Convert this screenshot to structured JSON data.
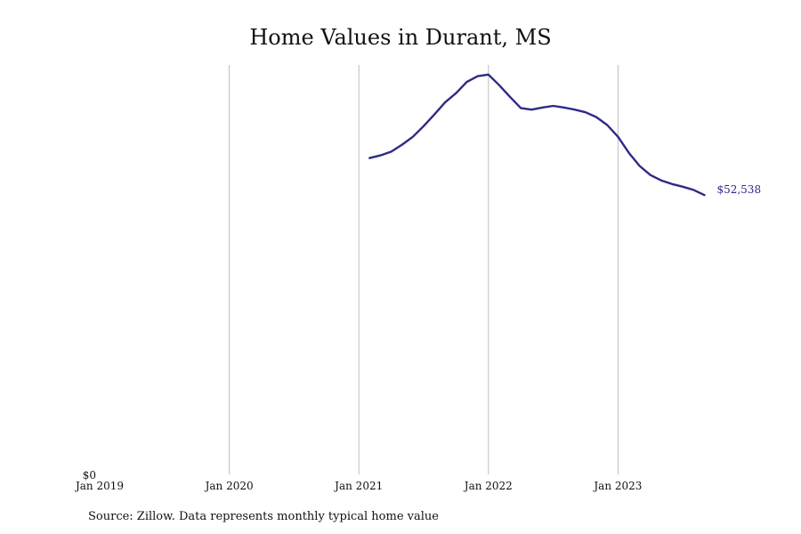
{
  "chart_data": {
    "type": "line",
    "title": "Home Values in Durant, MS",
    "xlabel": "",
    "ylabel": "",
    "x_ticks": [
      "Jan 2019",
      "Jan 2020",
      "Jan 2021",
      "Jan 2022",
      "Jan 2023"
    ],
    "y_ticks": [
      "$0"
    ],
    "ylim": [
      0,
      100000
    ],
    "grid": "vertical",
    "series": [
      {
        "color": "#2e2a86",
        "points": [
          {
            "x": "2021-02",
            "y": 59500
          },
          {
            "x": "2021-03",
            "y": 60000
          },
          {
            "x": "2021-04",
            "y": 60700
          },
          {
            "x": "2021-05",
            "y": 62000
          },
          {
            "x": "2021-06",
            "y": 63500
          },
          {
            "x": "2021-07",
            "y": 65500
          },
          {
            "x": "2021-08",
            "y": 67700
          },
          {
            "x": "2021-09",
            "y": 70000
          },
          {
            "x": "2021-10",
            "y": 71700
          },
          {
            "x": "2021-11",
            "y": 73800
          },
          {
            "x": "2021-12",
            "y": 74900
          },
          {
            "x": "2022-01",
            "y": 75200
          },
          {
            "x": "2022-02",
            "y": 73200
          },
          {
            "x": "2022-03",
            "y": 71000
          },
          {
            "x": "2022-04",
            "y": 68900
          },
          {
            "x": "2022-05",
            "y": 68600
          },
          {
            "x": "2022-06",
            "y": 69000
          },
          {
            "x": "2022-07",
            "y": 69300
          },
          {
            "x": "2022-08",
            "y": 69000
          },
          {
            "x": "2022-09",
            "y": 68600
          },
          {
            "x": "2022-10",
            "y": 68100
          },
          {
            "x": "2022-11",
            "y": 67200
          },
          {
            "x": "2022-12",
            "y": 65700
          },
          {
            "x": "2023-01",
            "y": 63500
          },
          {
            "x": "2023-02",
            "y": 60500
          },
          {
            "x": "2023-03",
            "y": 58000
          },
          {
            "x": "2023-04",
            "y": 56300
          },
          {
            "x": "2023-05",
            "y": 55300
          },
          {
            "x": "2023-06",
            "y": 54600
          },
          {
            "x": "2023-07",
            "y": 54100
          },
          {
            "x": "2023-08",
            "y": 53500
          },
          {
            "x": "2023-09",
            "y": 52538
          }
        ]
      }
    ],
    "end_label": "$52,538"
  },
  "source_note": "Source: Zillow. Data represents monthly typical home value",
  "colors": {
    "line": "#2e2a86",
    "gridline": "#bdbdbd",
    "text": "#111111"
  }
}
